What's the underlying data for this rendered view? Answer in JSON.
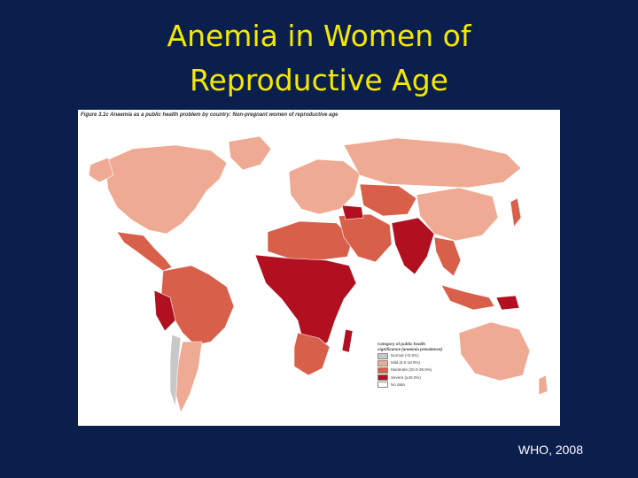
{
  "slide": {
    "title_line1": "Anemia in Women of",
    "title_line2": "Reproductive Age",
    "source": "WHO, 2008"
  },
  "figure": {
    "caption": "Figure 3.1c  Anaemia as a public health problem by country: Non-pregnant women of reproductive age",
    "legend": {
      "title": "Category of public health",
      "subtitle": "significance (anaemia prevalence)",
      "items": [
        {
          "label": "Normal (<5.0%)",
          "color": "#c8c8c8"
        },
        {
          "label": "Mild (5.0-19.9%)",
          "color": "#efaa94"
        },
        {
          "label": "Moderate (20.0-39.9%)",
          "color": "#d8604b"
        },
        {
          "label": "Severe (≥40.0%)",
          "color": "#b01020"
        },
        {
          "label": "No data",
          "color": "#ffffff"
        }
      ]
    }
  },
  "colors": {
    "background": "#0b1f4d",
    "title": "#f4e800",
    "mild": "#efaa94",
    "moderate": "#d8604b",
    "severe": "#b01020",
    "normal": "#c8c8c8"
  }
}
